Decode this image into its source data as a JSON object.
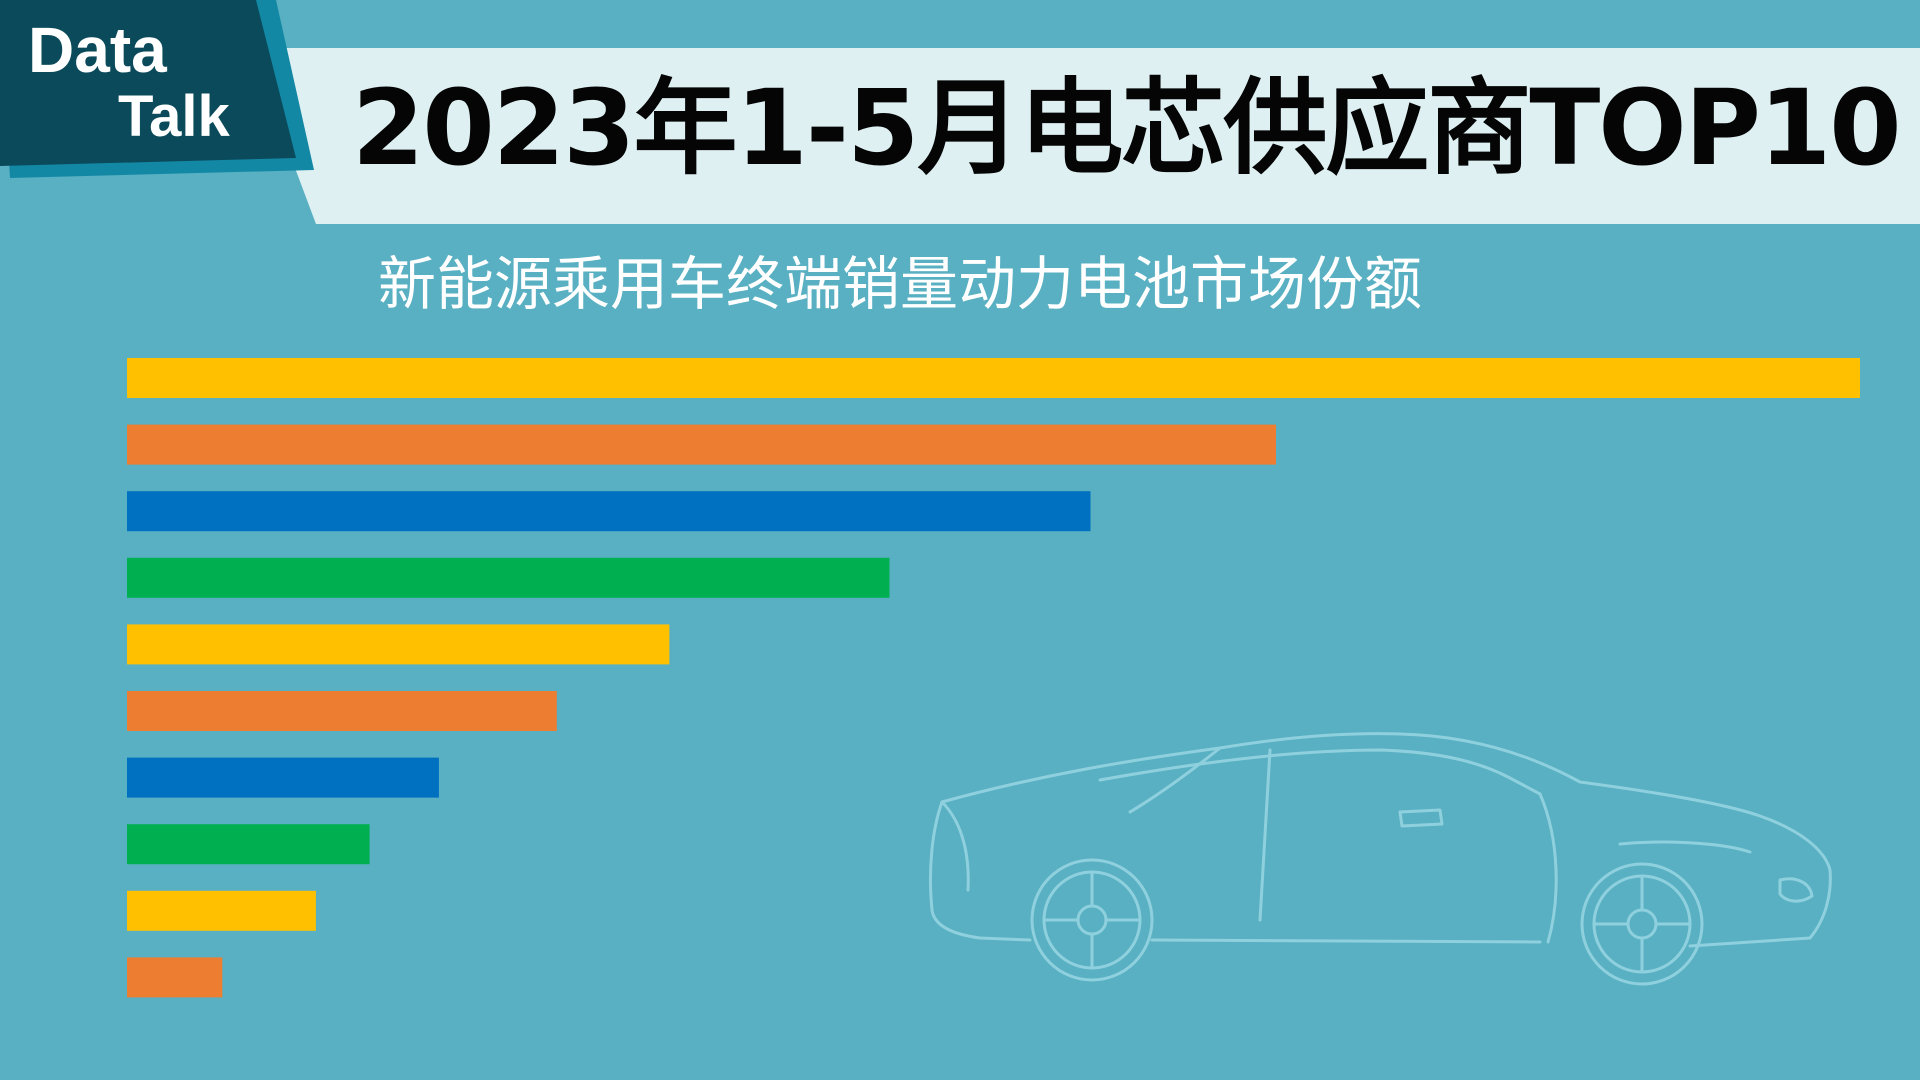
{
  "brand": {
    "line1": "Data",
    "line2": "Talk"
  },
  "header": {
    "title": "2023年1-5月电芯供应商TOP10"
  },
  "chart_data": {
    "type": "bar",
    "orientation": "horizontal",
    "title": "2023年1-5月电芯供应商TOP10",
    "subtitle": "新能源乘用车终端销量动力电池市场份额",
    "xlabel": "",
    "ylabel": "",
    "grid": false,
    "legend": "none",
    "series": [
      {
        "values": [
          100,
          66.3,
          55.6,
          44.0,
          31.3,
          24.8,
          18.0,
          14.0,
          10.9,
          5.5
        ],
        "colors": [
          "#ffc000",
          "#ed7d31",
          "#0070c0",
          "#00b050",
          "#ffc000",
          "#ed7d31",
          "#0070c0",
          "#00b050",
          "#ffc000",
          "#ed7d31"
        ]
      }
    ],
    "xlim": [
      0,
      100
    ]
  },
  "colors": {
    "background": "#58b0c2",
    "banner": "#dff0f3",
    "brand_dark": "#0a4a5a",
    "brand_accent": "#1388a5",
    "car_outline": "#8fd0de"
  },
  "illustration": {
    "icon": "sports-car-outline-icon"
  }
}
